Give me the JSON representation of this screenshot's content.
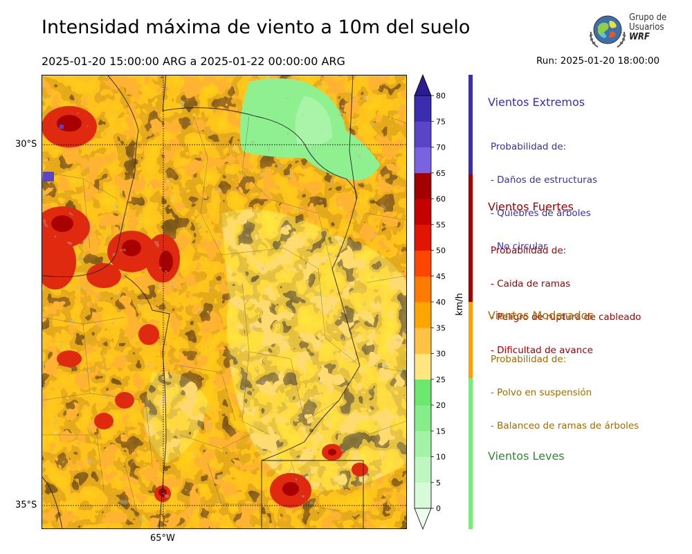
{
  "header": {
    "title": "Intensidad máxima de viento a 10m del suelo",
    "period": "2025-01-20 15:00:00 ARG  a  2025-01-22 00:00:00 ARG",
    "run": "Run: 2025-01-20 18:00:00"
  },
  "logo": {
    "line1": "Grupo de",
    "line2": "Usuarios",
    "line3": "WRF"
  },
  "map": {
    "lat_labels": [
      "30°S",
      "35°S"
    ],
    "lon_labels": [
      "65°W"
    ],
    "colors": {
      "light_green": "#90ee90",
      "pale_yellow": "#ffe680",
      "orange": "#ffa500",
      "red": "#cc0000",
      "purple": "#6a5acd"
    }
  },
  "colorbar": {
    "unit": "km/h",
    "ticks": [
      "0",
      "5",
      "10",
      "15",
      "20",
      "25",
      "30",
      "35",
      "40",
      "45",
      "50",
      "55",
      "60",
      "65",
      "70",
      "75",
      "80"
    ],
    "colors": [
      "#ecfded",
      "#d7fad8",
      "#bef7c0",
      "#a2f3a5",
      "#86ee89",
      "#6ce86f",
      "#ffe680",
      "#ffc245",
      "#ffa500",
      "#ff7a00",
      "#ff4500",
      "#e01600",
      "#c40000",
      "#a30000",
      "#7a63e0",
      "#5a44c8",
      "#3b2db0"
    ],
    "upper_extension_color": "#2b1d90"
  },
  "categories": [
    {
      "title": "Vientos Extremos",
      "lines": [
        "Probabilidad de:",
        "- Daños de estructuras",
        "- Quiebres de árboles",
        "- No circular"
      ],
      "color": "#3b2db0"
    },
    {
      "title": "Vientos Fuertes",
      "lines": [
        "Probabilidad de:",
        "- Caida de ramas",
        "- Peligro de ruptura de cableado",
        "- Dificultad de avance"
      ],
      "color": "#a30000"
    },
    {
      "title": "Vientos Moderados",
      "lines": [
        "Probabilidad de:",
        "- Polvo en suspensión",
        "- Balanceo de ramas de árboles"
      ],
      "color": "#ff9f00"
    },
    {
      "title": "Vientos Leves",
      "lines": [],
      "color": "#72f272"
    }
  ]
}
